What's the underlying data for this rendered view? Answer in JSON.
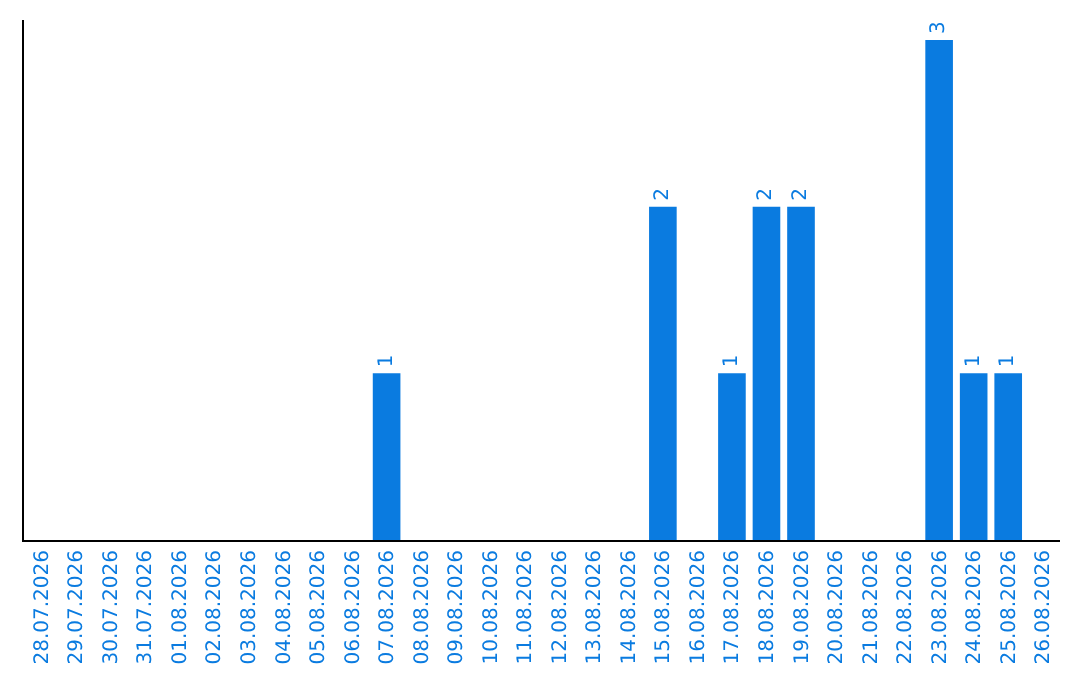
{
  "chart_data": {
    "type": "bar",
    "categories": [
      "28.07.2026",
      "29.07.2026",
      "30.07.2026",
      "31.07.2026",
      "01.08.2026",
      "02.08.2026",
      "03.08.2026",
      "04.08.2026",
      "05.08.2026",
      "06.08.2026",
      "07.08.2026",
      "08.08.2026",
      "09.08.2026",
      "10.08.2026",
      "11.08.2026",
      "12.08.2026",
      "13.08.2026",
      "14.08.2026",
      "15.08.2026",
      "16.08.2026",
      "17.08.2026",
      "18.08.2026",
      "19.08.2026",
      "20.08.2026",
      "21.08.2026",
      "22.08.2026",
      "23.08.2026",
      "24.08.2026",
      "25.08.2026",
      "26.08.2026"
    ],
    "values": [
      0,
      0,
      0,
      0,
      0,
      0,
      0,
      0,
      0,
      0,
      1,
      0,
      0,
      0,
      0,
      0,
      0,
      0,
      2,
      0,
      1,
      2,
      2,
      0,
      0,
      0,
      3,
      1,
      1,
      0
    ],
    "value_labels": [
      null,
      null,
      null,
      null,
      null,
      null,
      null,
      null,
      null,
      null,
      "1",
      null,
      null,
      null,
      null,
      null,
      null,
      null,
      "2",
      null,
      "1",
      "2",
      "2",
      null,
      null,
      null,
      "3",
      "1",
      "1",
      null
    ],
    "color": "#0a7be0",
    "tick_labels": "x"
  }
}
